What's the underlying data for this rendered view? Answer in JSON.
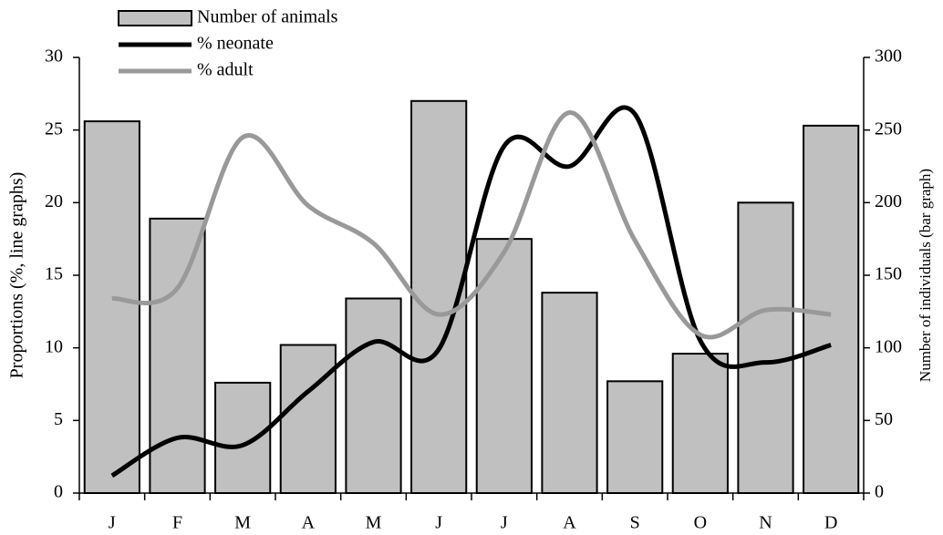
{
  "chart_data": {
    "type": "bar-line",
    "categories": [
      "J",
      "F",
      "M",
      "A",
      "M",
      "J",
      "J",
      "A",
      "S",
      "O",
      "N",
      "D"
    ],
    "series": [
      {
        "name": "Number of animals",
        "type": "bar",
        "axis": "y2",
        "color": "#c0c0c0",
        "values": [
          256,
          189,
          76,
          102,
          134,
          270,
          175,
          138,
          77,
          96,
          200,
          253
        ]
      },
      {
        "name": "% neonate",
        "type": "line",
        "color": "#000000",
        "values": [
          1.2,
          3.8,
          3.3,
          7,
          10.4,
          9.9,
          23.9,
          22.5,
          26.1,
          10.5,
          9.0,
          10.2
        ]
      },
      {
        "name": "% adult",
        "type": "line",
        "color": "#999999",
        "values": [
          13.4,
          14.1,
          24.5,
          19.8,
          17.2,
          12.3,
          16.6,
          26.2,
          17.4,
          10.9,
          12.6,
          12.3
        ]
      }
    ],
    "y_label": "Proportions (%, line graphs)",
    "y2_label": "Number of individuals (bar graph)",
    "ylim": [
      0,
      30
    ],
    "yticks": [
      0,
      5,
      10,
      15,
      20,
      25,
      30
    ],
    "y2lim": [
      0,
      300
    ],
    "y2ticks": [
      0,
      50,
      100,
      150,
      200,
      250,
      300
    ]
  }
}
